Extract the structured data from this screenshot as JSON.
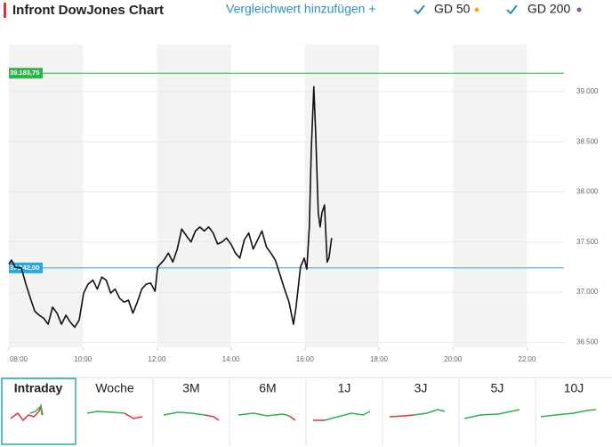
{
  "header": {
    "title": "Infront DowJones Chart",
    "compare_link": "Vergleichwert hinzufügen +",
    "indicators": [
      {
        "label": "GD 50",
        "color": "#f5a623"
      },
      {
        "label": "GD 200",
        "color": "#9b4db3"
      }
    ]
  },
  "chart_data": {
    "type": "line",
    "color": "#111111",
    "x": [
      8.0,
      8.07,
      8.17,
      8.34,
      8.46,
      8.58,
      8.7,
      8.82,
      8.94,
      9.06,
      9.18,
      9.3,
      9.42,
      9.54,
      9.66,
      9.78,
      9.9,
      10.02,
      10.14,
      10.27,
      10.39,
      10.51,
      10.63,
      10.75,
      10.87,
      10.99,
      11.11,
      11.23,
      11.35,
      11.47,
      11.59,
      11.71,
      11.83,
      11.95,
      12.02,
      12.19,
      12.31,
      12.43,
      12.55,
      12.67,
      12.8,
      12.92,
      13.04,
      13.16,
      13.28,
      13.4,
      13.52,
      13.64,
      13.76,
      13.88,
      14.0,
      14.12,
      14.24,
      14.36,
      14.48,
      14.6,
      14.72,
      14.84,
      14.96,
      15.08,
      15.2,
      15.33,
      15.45,
      15.57,
      15.69,
      15.76,
      15.88,
      15.98,
      16.05,
      16.12,
      16.17,
      16.24,
      16.29,
      16.36,
      16.41,
      16.46,
      16.53,
      16.6,
      16.65,
      16.72
    ],
    "values": [
      37280,
      37320,
      37250,
      37240,
      37080,
      36940,
      36810,
      36770,
      36740,
      36680,
      36850,
      36790,
      36680,
      36770,
      36700,
      36650,
      36720,
      36990,
      37080,
      37120,
      37030,
      37150,
      37120,
      36990,
      37030,
      36940,
      36900,
      36920,
      36790,
      36900,
      37030,
      37080,
      37090,
      37010,
      37250,
      37320,
      37390,
      37300,
      37430,
      37630,
      37560,
      37500,
      37610,
      37650,
      37610,
      37650,
      37590,
      37480,
      37500,
      37540,
      37480,
      37390,
      37340,
      37520,
      37590,
      37430,
      37520,
      37610,
      37450,
      37390,
      37320,
      37170,
      37030,
      36900,
      36680,
      36850,
      37250,
      37340,
      37230,
      37660,
      38410,
      39050,
      38580,
      37790,
      37650,
      37790,
      37870,
      37300,
      37340,
      37540
    ],
    "xlim": [
      8,
      23
    ],
    "xticks": [
      {
        "value": 8,
        "label": "08:00"
      },
      {
        "value": 10,
        "label": "10:00"
      },
      {
        "value": 12,
        "label": "12:00"
      },
      {
        "value": 14,
        "label": "14:00"
      },
      {
        "value": 16,
        "label": "16:00"
      },
      {
        "value": 18,
        "label": "18:00"
      },
      {
        "value": 20,
        "label": "20:00"
      },
      {
        "value": 22,
        "label": "22:00"
      }
    ],
    "ylim": [
      36450,
      39470
    ],
    "yticks": [
      {
        "value": 36500,
        "label": "36.500"
      },
      {
        "value": 37000,
        "label": "37.000"
      },
      {
        "value": 37500,
        "label": "37.500"
      },
      {
        "value": 38000,
        "label": "38.000"
      },
      {
        "value": 38500,
        "label": "38.500"
      },
      {
        "value": 39000,
        "label": "39.000"
      }
    ],
    "reference_lines": [
      {
        "value": 39183.75,
        "label": "39.183,75",
        "color": "#2db34a"
      },
      {
        "value": 37242,
        "label": "37.242,00",
        "color": "#29a8e0"
      }
    ]
  },
  "tabs": [
    "Intraday",
    "Woche",
    "3M",
    "6M",
    "1J",
    "3J",
    "5J",
    "10J"
  ]
}
